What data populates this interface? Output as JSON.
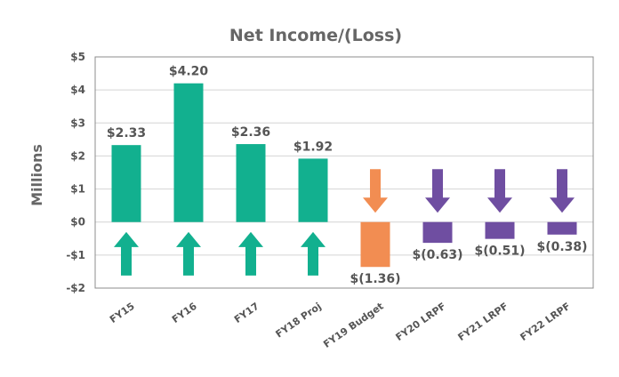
{
  "chart_data": {
    "type": "bar",
    "title": "Net Income/(Loss)",
    "xlabel": "",
    "ylabel": "Millions",
    "categories": [
      "FY15",
      "FY16",
      "FY17",
      "FY18 Proj",
      "FY19 Budget",
      "FY20 LRPF",
      "FY21 LRPF",
      "FY22 LRPF"
    ],
    "values": [
      2.33,
      4.2,
      2.36,
      1.92,
      -1.36,
      -0.63,
      -0.51,
      -0.38
    ],
    "data_labels": [
      "$2.33",
      "$4.20",
      "$2.36",
      "$1.92",
      "$(1.36)",
      "$(0.63)",
      "$(0.51)",
      "$(0.38)"
    ],
    "ylim": [
      -2,
      5
    ],
    "yticks": [
      5,
      4,
      3,
      2,
      1,
      0,
      -1,
      -2
    ],
    "ytick_labels": [
      "$5",
      "$4",
      "$3",
      "$2",
      "$1",
      "$0",
      "-$1",
      "-$2"
    ],
    "grid": true,
    "legend": "none",
    "bar_colors": [
      "#12b08f",
      "#12b08f",
      "#12b08f",
      "#12b08f",
      "#f28d52",
      "#6f4ea1",
      "#6f4ea1",
      "#6f4ea1"
    ],
    "arrows": [
      "up",
      "up",
      "up",
      "up",
      "down",
      "down",
      "down",
      "down"
    ]
  }
}
